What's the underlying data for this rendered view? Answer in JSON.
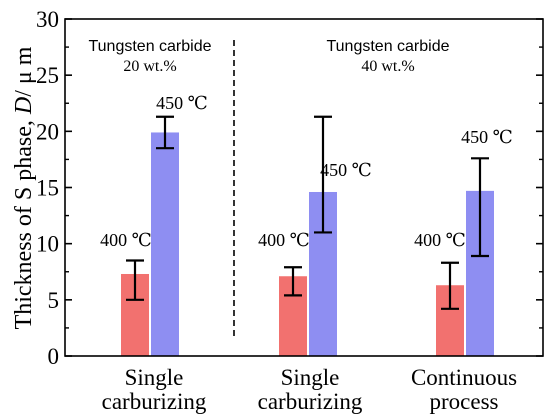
{
  "chart_data": {
    "type": "bar",
    "ylabel_main": "Thickness of S phase, ",
    "ylabel_var": "D",
    "ylabel_unit": "/ μ m",
    "ylim": [
      0,
      30
    ],
    "yticks": [
      "0",
      "5",
      "10",
      "15",
      "20",
      "25",
      "30"
    ],
    "grid": false,
    "categories": [
      {
        "line1": "Single",
        "line2": "carburizing"
      },
      {
        "line1": "Single",
        "line2": "carburizing"
      },
      {
        "line1": "Continuous",
        "line2": "process"
      }
    ],
    "groups": [
      {
        "line1": "Tungsten carbide",
        "line2": "20 wt.%"
      },
      {
        "line1": "Tungsten carbide",
        "line2": "40 wt.%"
      }
    ],
    "series": [
      {
        "label": "400 ℃",
        "color": "#f2716f",
        "values": [
          7.3,
          7.1,
          6.3
        ],
        "err_low": [
          5.0,
          5.4,
          4.2
        ],
        "err_high": [
          8.5,
          7.9,
          8.3
        ]
      },
      {
        "label": "450 ℃",
        "color": "#8e8ef2",
        "values": [
          19.9,
          14.6,
          14.7
        ],
        "err_low": [
          18.5,
          11.0,
          8.9
        ],
        "err_high": [
          21.3,
          21.3,
          17.6
        ]
      }
    ]
  }
}
